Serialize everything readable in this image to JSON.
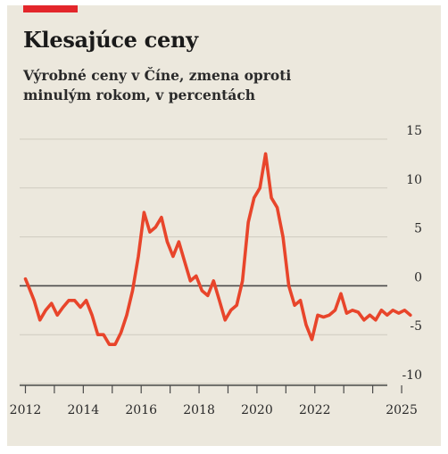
{
  "header": {
    "title": "Klesajúce ceny",
    "subtitle": "Výrobné ceny v Číne, zmena oproti minulým rokom, v percentách"
  },
  "colors": {
    "accent": "#e3262b",
    "line": "#e8452b",
    "background": "#ece8dd",
    "grid": "#cfcbc0",
    "axis": "#4a4a4a"
  },
  "chart_data": {
    "type": "line",
    "title": "Klesajúce ceny",
    "subtitle": "Výrobné ceny v Číne, zmena oproti minulým rokom, v percentách",
    "xlabel": "",
    "ylabel": "",
    "xlim": [
      2011.8,
      2025.8
    ],
    "ylim": [
      -10,
      15
    ],
    "yticks": [
      15,
      10,
      5,
      0,
      -5,
      -10
    ],
    "xtick_labels": [
      "2012",
      "2014",
      "2016",
      "2018",
      "2020",
      "2022",
      "2025"
    ],
    "xtick_label_positions": [
      2012,
      2014,
      2016,
      2018,
      2020,
      2022,
      2025
    ],
    "xticks_minor": [
      2012,
      2013,
      2014,
      2015,
      2016,
      2017,
      2018,
      2019,
      2020,
      2021,
      2022,
      2023,
      2024,
      2025
    ],
    "grid": true,
    "y_axis_side": "right",
    "series": [
      {
        "x": [
          2012.0,
          2012.1,
          2012.3,
          2012.5,
          2012.7,
          2012.9,
          2013.1,
          2013.3,
          2013.5,
          2013.7,
          2013.9,
          2014.1,
          2014.3,
          2014.5,
          2014.7,
          2014.9,
          2015.1,
          2015.3,
          2015.5,
          2015.7,
          2015.9,
          2016.1,
          2016.3,
          2016.5,
          2016.7,
          2016.9,
          2017.1,
          2017.3,
          2017.5,
          2017.7,
          2017.9,
          2018.1,
          2018.3,
          2018.5,
          2018.7,
          2018.9,
          2019.1,
          2019.3,
          2019.5,
          2019.7,
          2019.9,
          2020.1,
          2020.3,
          2020.5,
          2020.7,
          2020.9,
          2021.1,
          2021.3,
          2021.5,
          2021.7,
          2021.9,
          2022.1,
          2022.3,
          2022.5,
          2022.7,
          2022.9,
          2023.1,
          2023.3,
          2023.5,
          2023.7,
          2023.9,
          2024.1,
          2024.3,
          2024.5,
          2024.7,
          2024.9,
          2025.1,
          2025.3
        ],
        "y": [
          0.7,
          0.0,
          -1.5,
          -3.5,
          -2.5,
          -1.8,
          -3.0,
          -2.2,
          -1.5,
          -1.5,
          -2.2,
          -1.5,
          -3.0,
          -5.0,
          -5.0,
          -6.0,
          -6.0,
          -4.8,
          -3.0,
          -0.5,
          3.0,
          7.5,
          5.5,
          6.0,
          7.0,
          4.5,
          3.0,
          4.5,
          2.5,
          0.5,
          1.0,
          -0.5,
          -1.0,
          0.5,
          -1.5,
          -3.5,
          -2.5,
          -2.0,
          0.5,
          6.5,
          9.0,
          10.0,
          13.5,
          9.0,
          8.0,
          5.0,
          0.0,
          -2.0,
          -1.5,
          -4.0,
          -5.5,
          -3.0,
          -3.2,
          -3.0,
          -2.5,
          -0.8,
          -2.8,
          -2.5,
          -2.7,
          -3.5,
          -3.0,
          -3.5,
          -2.5,
          -3.0,
          -2.5,
          -2.8,
          -2.5,
          -3.0
        ]
      }
    ]
  }
}
